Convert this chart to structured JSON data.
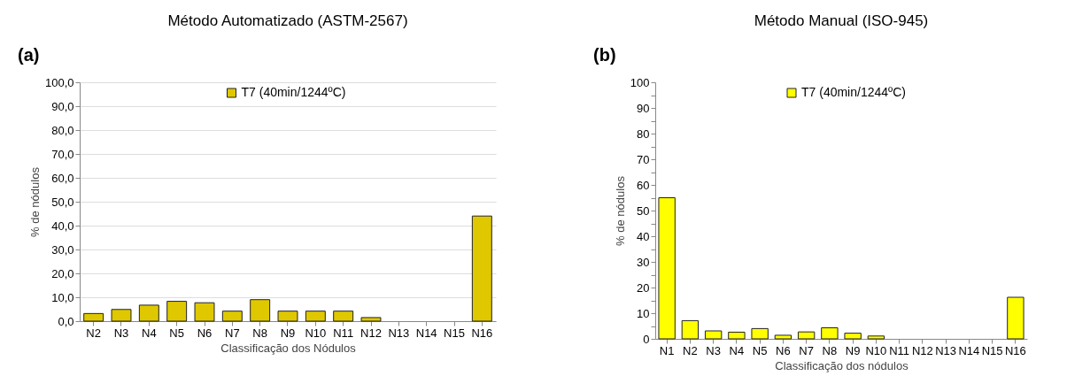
{
  "chart_data": [
    {
      "type": "bar",
      "title": "Método Automatizado (ASTM-2567)",
      "annotations": [
        "(a)"
      ],
      "xlabel": "Classificação dos Nódulos",
      "ylabel": "% de nódulos",
      "categories": [
        "N2",
        "N3",
        "N4",
        "N5",
        "N6",
        "N7",
        "N8",
        "N9",
        "N10",
        "N11",
        "N12",
        "N13",
        "N14",
        "N15",
        "N16"
      ],
      "series": [
        {
          "name": "T7 (40min/1244ºC)",
          "color": "#e0c800",
          "values": [
            3.2,
            4.9,
            6.7,
            8.3,
            7.7,
            4.2,
            9.0,
            4.2,
            4.2,
            4.2,
            1.5,
            0,
            0,
            0,
            44.0
          ]
        }
      ],
      "ylim": [
        0,
        100
      ],
      "yticks": [
        {
          "value": 0,
          "label": "0,0"
        },
        {
          "value": 10,
          "label": "10,0"
        },
        {
          "value": 20,
          "label": "20,0"
        },
        {
          "value": 30,
          "label": "30,0"
        },
        {
          "value": 40,
          "label": "40,0"
        },
        {
          "value": 50,
          "label": "50,0"
        },
        {
          "value": 60,
          "label": "60,0"
        },
        {
          "value": 70,
          "label": "70,0"
        },
        {
          "value": 80,
          "label": "80,0"
        },
        {
          "value": 90,
          "label": "90,0"
        },
        {
          "value": 100,
          "label": "100,0"
        }
      ],
      "grid": "y",
      "legend": "top"
    },
    {
      "type": "bar",
      "title": "Método Manual (ISO-945)",
      "annotations": [
        "(b)"
      ],
      "xlabel": "Classificação dos nódulos",
      "ylabel": "% de nódulos",
      "categories": [
        "N1",
        "N2",
        "N3",
        "N4",
        "N5",
        "N6",
        "N7",
        "N8",
        "N9",
        "N10",
        "N11",
        "N12",
        "N13",
        "N14",
        "N15",
        "N16"
      ],
      "series": [
        {
          "name": "T7 (40min/1244ºC)",
          "color": "#ffff00",
          "values": [
            55.0,
            7.1,
            3.1,
            2.6,
            4.0,
            1.4,
            2.7,
            4.3,
            2.2,
            1.1,
            0,
            0,
            0,
            0,
            0,
            16.2
          ]
        }
      ],
      "ylim": [
        0,
        100
      ],
      "yticks": [
        0,
        {
          "value": 5,
          "label": null
        },
        10,
        {
          "value": 15,
          "label": null
        },
        20,
        {
          "value": 25,
          "label": null
        },
        30,
        {
          "value": 35,
          "label": null
        },
        40,
        {
          "value": 45,
          "label": null
        },
        50,
        {
          "value": 55,
          "label": null
        },
        60,
        {
          "value": 65,
          "label": null
        },
        70,
        {
          "value": 75,
          "label": null
        },
        80,
        {
          "value": 85,
          "label": null
        },
        90,
        {
          "value": 95,
          "label": null
        },
        100
      ],
      "grid": false,
      "legend": "top"
    }
  ]
}
